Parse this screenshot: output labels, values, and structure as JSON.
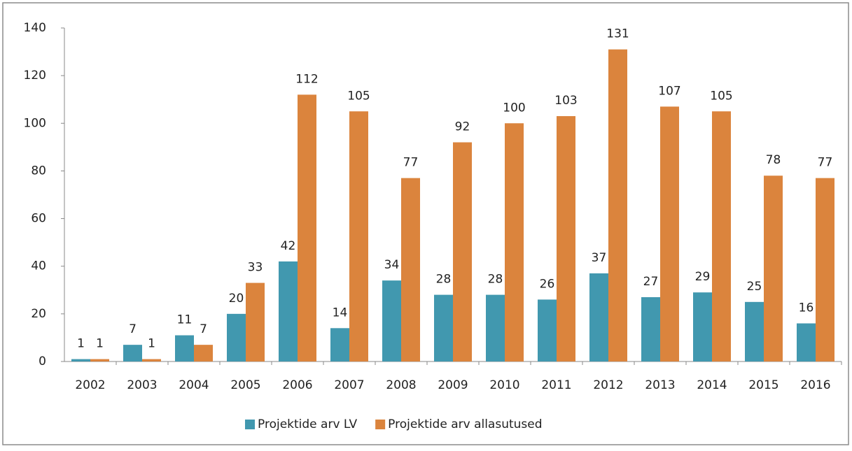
{
  "chart_data": {
    "type": "bar",
    "categories": [
      "2002",
      "2003",
      "2004",
      "2005",
      "2006",
      "2007",
      "2008",
      "2009",
      "2010",
      "2011",
      "2012",
      "2013",
      "2014",
      "2015",
      "2016"
    ],
    "series": [
      {
        "name": "Projektide arv LV",
        "color": "#4198af",
        "values": [
          1,
          7,
          11,
          20,
          42,
          14,
          34,
          28,
          28,
          26,
          37,
          27,
          29,
          25,
          16
        ]
      },
      {
        "name": "Projektide arv allasutused",
        "color": "#db843d",
        "values": [
          1,
          1,
          7,
          33,
          112,
          105,
          77,
          92,
          100,
          103,
          131,
          107,
          105,
          78,
          77
        ]
      }
    ],
    "ylim": [
      0,
      140
    ],
    "yticks": [
      0,
      20,
      40,
      60,
      80,
      100,
      120,
      140
    ],
    "grid": false,
    "legend": "bottom"
  }
}
